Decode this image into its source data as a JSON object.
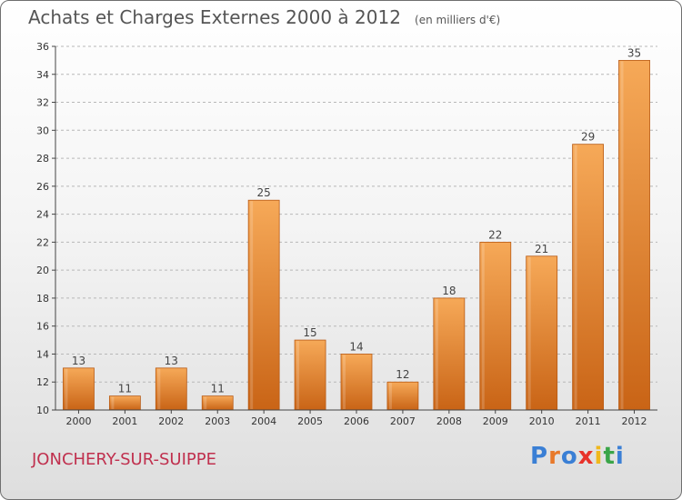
{
  "header": {
    "title": "Achats et Charges Externes 2000 à 2012",
    "unit": "(en milliers d'€)"
  },
  "footer": {
    "city": "JONCHERY-SUR-SUIPPE",
    "logo_text": "Proxiti",
    "logo_colors": [
      "#3a7fd5",
      "#e8792a",
      "#3a7fd5",
      "#e8322a",
      "#f0b81c",
      "#3aa548",
      "#3a7fd5"
    ]
  },
  "colors": {
    "bar_light": "#f6a958",
    "bar_dark": "#c96416",
    "bar_edge": "#b85a14",
    "grid": "#b8b8b8",
    "axis": "#444444"
  },
  "chart_data": {
    "type": "bar",
    "title": "Achats et Charges Externes 2000 à 2012",
    "subtitle": "(en milliers d'€)",
    "categories": [
      "2000",
      "2001",
      "2002",
      "2003",
      "2004",
      "2005",
      "2006",
      "2007",
      "2008",
      "2009",
      "2010",
      "2011",
      "2012"
    ],
    "values": [
      13,
      11,
      13,
      11,
      25,
      15,
      14,
      12,
      18,
      22,
      21,
      29,
      35
    ],
    "ylim": [
      10,
      36
    ],
    "yticks": [
      10,
      12,
      14,
      16,
      18,
      20,
      22,
      24,
      26,
      28,
      30,
      32,
      34,
      36
    ],
    "xlabel": "",
    "ylabel": "",
    "grid": true,
    "legend": "none"
  }
}
